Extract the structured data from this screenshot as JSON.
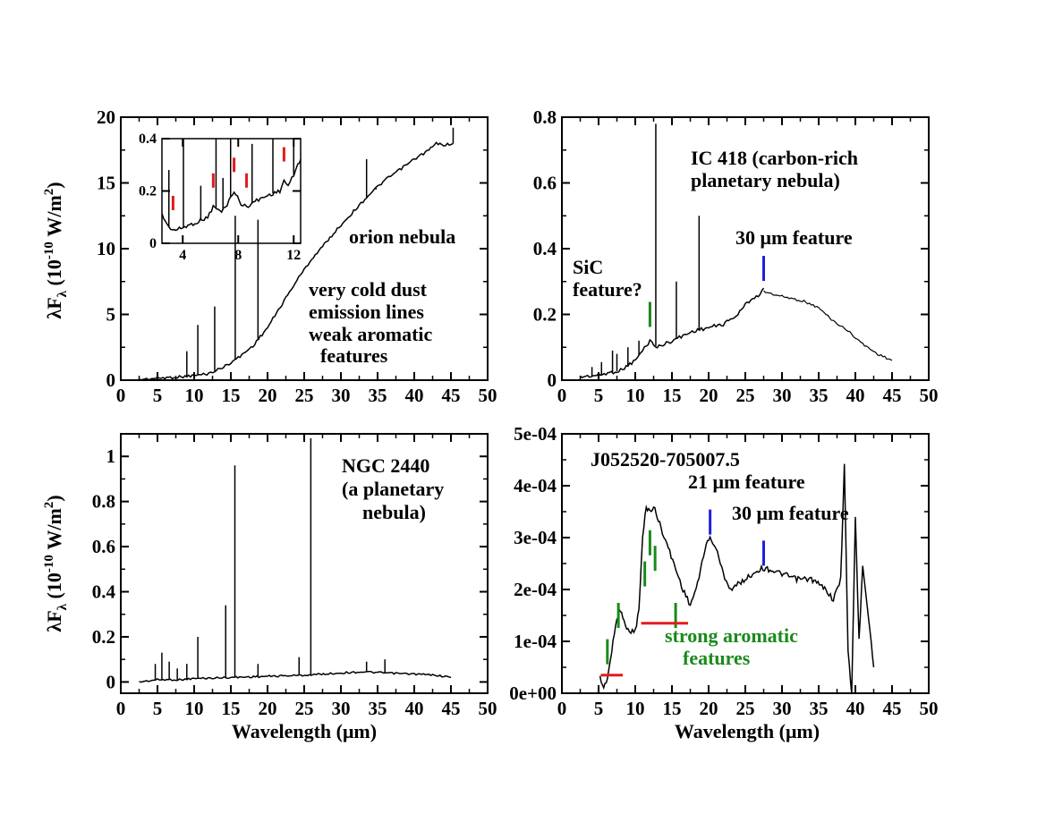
{
  "colors": {
    "axis": "#000000",
    "spectrum": "#000000",
    "red_marker": "#e41a1c",
    "green_marker": "#1a8a1a",
    "blue_marker": "#1f1fe0"
  },
  "chart_data": [
    {
      "id": "orion",
      "type": "line",
      "xlabel": "",
      "ylabel_main": "λF",
      "ylabel_sub": "λ",
      "ylabel_unit": " (10",
      "ylabel_exp": "-10",
      "ylabel_tail": " W/m",
      "ylabel_exp2": "2",
      "ylabel_close": ")",
      "xlim": [
        0,
        50
      ],
      "ylim": [
        0,
        20
      ],
      "xticks": [
        0,
        5,
        10,
        15,
        20,
        25,
        30,
        35,
        40,
        45,
        50
      ],
      "xtick_labels": [
        "0",
        "5",
        "10",
        "15",
        "20",
        "25",
        "30",
        "35",
        "40",
        "45",
        "50"
      ],
      "yticks": [
        0,
        5,
        10,
        15,
        20
      ],
      "ytick_labels": [
        "0",
        "5",
        "10",
        "15",
        "20"
      ],
      "continuum": [
        [
          2.5,
          0.05
        ],
        [
          5,
          0.15
        ],
        [
          8,
          0.25
        ],
        [
          10,
          0.35
        ],
        [
          12,
          0.5
        ],
        [
          14,
          1.0
        ],
        [
          16,
          1.7
        ],
        [
          18,
          2.6
        ],
        [
          20,
          4.0
        ],
        [
          22,
          5.8
        ],
        [
          24,
          7.6
        ],
        [
          26,
          9.2
        ],
        [
          28,
          10.5
        ],
        [
          30,
          11.8
        ],
        [
          32,
          13.0
        ],
        [
          34,
          14.2
        ],
        [
          36,
          15.2
        ],
        [
          38,
          16.0
        ],
        [
          40,
          16.8
        ],
        [
          42,
          17.5
        ],
        [
          43,
          18.0
        ],
        [
          44,
          17.9
        ],
        [
          45.3,
          18.0
        ]
      ],
      "lines": [
        [
          9.0,
          2.2
        ],
        [
          10.5,
          4.2
        ],
        [
          12.8,
          5.6
        ],
        [
          15.6,
          12.5
        ],
        [
          18.7,
          12.2
        ],
        [
          33.5,
          16.8
        ],
        [
          34.8,
          14.5
        ],
        [
          45.3,
          19.2
        ]
      ],
      "annotations": [
        "orion nebula",
        "very cold dust",
        "emission lines",
        "weak aromatic",
        "features"
      ],
      "inset": {
        "xlim": [
          2.5,
          12.5
        ],
        "ylim": [
          0,
          0.4
        ],
        "xticks": [
          4,
          8,
          12
        ],
        "xtick_labels": [
          "4",
          "8",
          "12"
        ],
        "yticks": [
          0,
          0.2,
          0.4
        ],
        "ytick_labels": [
          "0",
          "0.2",
          "0.4"
        ],
        "continuum": [
          [
            2.5,
            0.11
          ],
          [
            3,
            0.06
          ],
          [
            3.5,
            0.05
          ],
          [
            4,
            0.06
          ],
          [
            5,
            0.08
          ],
          [
            5.8,
            0.1
          ],
          [
            6.2,
            0.14
          ],
          [
            6.8,
            0.12
          ],
          [
            7.2,
            0.15
          ],
          [
            7.7,
            0.2
          ],
          [
            8.2,
            0.15
          ],
          [
            8.6,
            0.14
          ],
          [
            9.2,
            0.16
          ],
          [
            10,
            0.18
          ],
          [
            11,
            0.2
          ],
          [
            11.3,
            0.24
          ],
          [
            11.6,
            0.22
          ],
          [
            12,
            0.26
          ],
          [
            12.3,
            0.3
          ],
          [
            12.5,
            0.32
          ]
        ],
        "lines": [
          [
            3.0,
            0.28
          ],
          [
            4.05,
            0.4
          ],
          [
            5.3,
            0.22
          ],
          [
            6.4,
            0.4
          ],
          [
            6.9,
            0.25
          ],
          [
            7.45,
            0.4
          ],
          [
            9.0,
            0.38
          ],
          [
            10.5,
            0.4
          ],
          [
            12.0,
            0.4
          ]
        ],
        "red_markers": [
          3.3,
          6.2,
          7.7,
          8.6,
          11.3
        ]
      }
    },
    {
      "id": "ic418",
      "type": "line",
      "xlim": [
        0,
        50
      ],
      "ylim": [
        0,
        0.8
      ],
      "xticks": [
        0,
        5,
        10,
        15,
        20,
        25,
        30,
        35,
        40,
        45,
        50
      ],
      "xtick_labels": [
        "0",
        "5",
        "10",
        "15",
        "20",
        "25",
        "30",
        "35",
        "40",
        "45",
        "50"
      ],
      "yticks": [
        0,
        0.2,
        0.4,
        0.6,
        0.8
      ],
      "ytick_labels": [
        "0",
        "0.2",
        "0.4",
        "0.6",
        "0.8"
      ],
      "continuum": [
        [
          2.5,
          0.01
        ],
        [
          5,
          0.015
        ],
        [
          8,
          0.03
        ],
        [
          10,
          0.06
        ],
        [
          11,
          0.09
        ],
        [
          12,
          0.12
        ],
        [
          13,
          0.1
        ],
        [
          14,
          0.11
        ],
        [
          16,
          0.13
        ],
        [
          18,
          0.15
        ],
        [
          20,
          0.16
        ],
        [
          22,
          0.17
        ],
        [
          24,
          0.2
        ],
        [
          25,
          0.23
        ],
        [
          26,
          0.25
        ],
        [
          27,
          0.26
        ],
        [
          27.5,
          0.28
        ]
      ],
      "tail": [
        [
          27.5,
          0.27
        ],
        [
          29,
          0.26
        ],
        [
          31,
          0.25
        ],
        [
          33,
          0.24
        ],
        [
          35,
          0.22
        ],
        [
          37,
          0.18
        ],
        [
          39,
          0.15
        ],
        [
          41,
          0.11
        ],
        [
          43,
          0.08
        ],
        [
          45,
          0.06
        ]
      ],
      "lines": [
        [
          4.1,
          0.04
        ],
        [
          5.4,
          0.055
        ],
        [
          6.9,
          0.09
        ],
        [
          7.5,
          0.08
        ],
        [
          9.0,
          0.1
        ],
        [
          10.5,
          0.12
        ],
        [
          12.8,
          0.78
        ],
        [
          15.6,
          0.3
        ],
        [
          18.7,
          0.5
        ]
      ],
      "annotations": [
        "IC 418 (carbon-rich",
        "planetary nebula)",
        "30 μm feature",
        "SiC",
        "feature?"
      ],
      "green_markers": [
        [
          12.0,
          0.2
        ]
      ],
      "blue_markers": [
        [
          27.5,
          0.34
        ]
      ]
    },
    {
      "id": "ngc2440",
      "type": "line",
      "xlabel": "Wavelength (μm)",
      "ylabel_main": "λF",
      "ylabel_sub": "λ",
      "ylabel_unit": " (10",
      "ylabel_exp": "-10",
      "ylabel_tail": " W/m",
      "ylabel_exp2": "2",
      "ylabel_close": ")",
      "xlim": [
        0,
        50
      ],
      "ylim": [
        -0.05,
        1.1
      ],
      "xticks": [
        0,
        5,
        10,
        15,
        20,
        25,
        30,
        35,
        40,
        45,
        50
      ],
      "xtick_labels": [
        "0",
        "5",
        "10",
        "15",
        "20",
        "25",
        "30",
        "35",
        "40",
        "45",
        "50"
      ],
      "yticks": [
        0,
        0.2,
        0.4,
        0.6,
        0.8,
        1
      ],
      "ytick_labels": [
        "0",
        "0.2",
        "0.4",
        "0.6",
        "0.8",
        "1"
      ],
      "continuum": [
        [
          2.5,
          0.0
        ],
        [
          5,
          0.01
        ],
        [
          8,
          0.01
        ],
        [
          10,
          0.015
        ],
        [
          15,
          0.02
        ],
        [
          20,
          0.025
        ],
        [
          25,
          0.03
        ],
        [
          30,
          0.04
        ],
        [
          33,
          0.045
        ],
        [
          36,
          0.04
        ],
        [
          40,
          0.035
        ],
        [
          43,
          0.03
        ],
        [
          45,
          0.02
        ]
      ],
      "lines": [
        [
          4.7,
          0.08
        ],
        [
          5.6,
          0.13
        ],
        [
          6.6,
          0.09
        ],
        [
          7.7,
          0.06
        ],
        [
          9.0,
          0.08
        ],
        [
          10.5,
          0.2
        ],
        [
          14.3,
          0.34
        ],
        [
          15.55,
          0.96
        ],
        [
          18.7,
          0.08
        ],
        [
          24.3,
          0.11
        ],
        [
          25.9,
          1.08
        ],
        [
          33.5,
          0.09
        ],
        [
          36.0,
          0.1
        ]
      ],
      "annotations": [
        "NGC 2440",
        "(a planetary",
        "nebula)"
      ]
    },
    {
      "id": "j052520",
      "type": "line",
      "xlabel": "Wavelength (μm)",
      "xlim": [
        0,
        50
      ],
      "ylim": [
        0,
        0.0005
      ],
      "xticks": [
        0,
        5,
        10,
        15,
        20,
        25,
        30,
        35,
        40,
        45,
        50
      ],
      "xtick_labels": [
        "0",
        "5",
        "10",
        "15",
        "20",
        "25",
        "30",
        "35",
        "40",
        "45",
        "50"
      ],
      "yticks": [
        0,
        0.0001,
        0.0002,
        0.0003,
        0.0004,
        0.0005
      ],
      "ytick_labels": [
        "0e+00",
        "1e-04",
        "2e-04",
        "3e-04",
        "4e-04",
        "5e-04"
      ],
      "continuum": [
        [
          5.2,
          3e-05
        ],
        [
          5.7,
          1e-05
        ],
        [
          6.2,
          3e-05
        ],
        [
          6.8,
          8e-05
        ],
        [
          7.3,
          0.00013
        ],
        [
          7.8,
          0.00016
        ],
        [
          8.3,
          0.00015
        ],
        [
          9,
          0.00012
        ],
        [
          10,
          0.00012
        ],
        [
          10.5,
          0.00016
        ],
        [
          11,
          0.0003
        ],
        [
          11.5,
          0.00036
        ],
        [
          12,
          0.00035
        ],
        [
          12.5,
          0.00036
        ],
        [
          13,
          0.00034
        ],
        [
          13.5,
          0.00032
        ],
        [
          14.5,
          0.00028
        ],
        [
          15.5,
          0.00024
        ],
        [
          16.5,
          0.0002
        ],
        [
          17.5,
          0.00017
        ],
        [
          18.5,
          0.00021
        ],
        [
          19.5,
          0.00028
        ],
        [
          20.2,
          0.0003
        ],
        [
          21,
          0.00028
        ],
        [
          22,
          0.00023
        ],
        [
          23,
          0.0002
        ],
        [
          24,
          0.00021
        ],
        [
          25,
          0.00022
        ],
        [
          26,
          0.00023
        ],
        [
          27,
          0.00024
        ],
        [
          28,
          0.00024
        ],
        [
          30,
          0.00023
        ],
        [
          32,
          0.00022
        ],
        [
          34,
          0.00022
        ],
        [
          36,
          0.0002
        ],
        [
          37,
          0.00018
        ],
        [
          38,
          0.00022
        ],
        [
          38.5,
          0.00044
        ],
        [
          39,
          8e-05
        ],
        [
          39.5,
          0.0
        ],
        [
          40,
          0.00034
        ],
        [
          40.5,
          0.0001
        ],
        [
          41,
          0.00025
        ],
        [
          42,
          0.00012
        ],
        [
          42.5,
          5e-05
        ]
      ],
      "lines": [],
      "annotations": [
        "J052520-705007.5",
        "21 μm feature",
        "30 μm feature",
        "strong aromatic",
        "features"
      ],
      "green_markers": [
        [
          6.2,
          8e-05
        ],
        [
          7.7,
          0.00015
        ],
        [
          11.3,
          0.00023
        ],
        [
          12.0,
          0.00029
        ],
        [
          12.7,
          0.00026
        ],
        [
          15.5,
          0.00015
        ]
      ],
      "blue_markers": [
        [
          20.2,
          0.00033
        ],
        [
          27.5,
          0.00027
        ]
      ],
      "red_ranges": [
        [
          5.3,
          8.3,
          3.5e-05
        ],
        [
          10.8,
          17.2,
          0.000135
        ]
      ]
    }
  ]
}
